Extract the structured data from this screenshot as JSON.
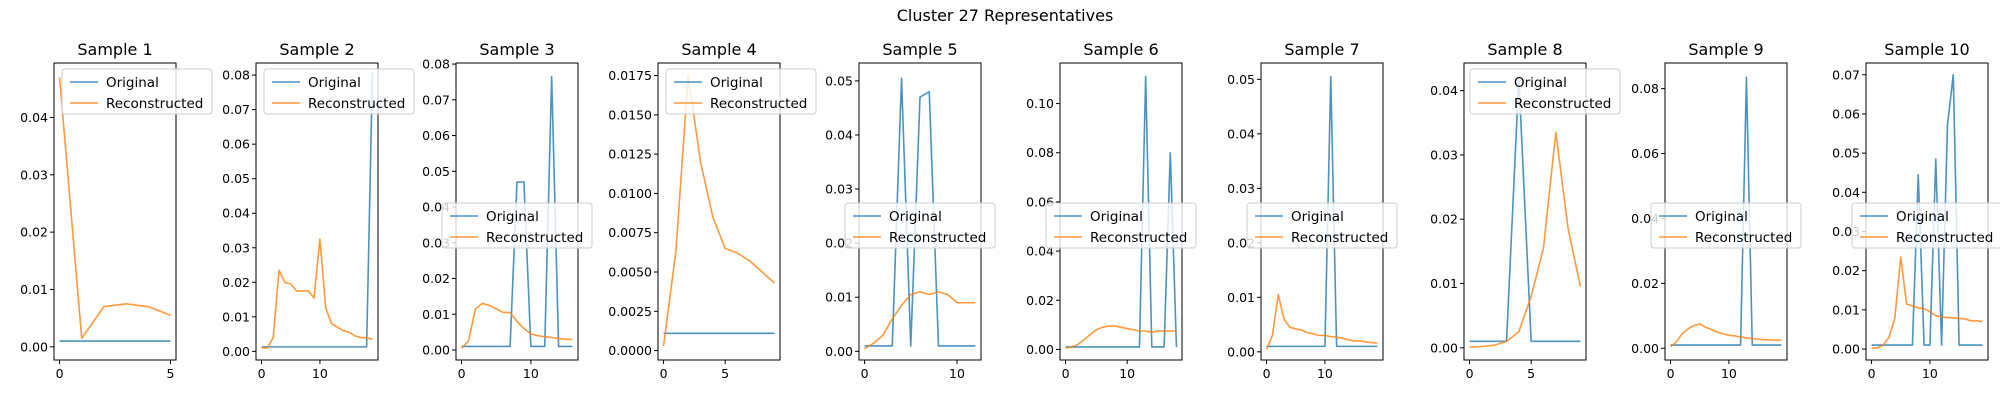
{
  "figure": {
    "title": "Cluster 27 Representatives",
    "colors": {
      "original": "#1f77b4",
      "reconstructed": "#ff7f0e",
      "frame": "#000000",
      "background": "#ffffff"
    }
  },
  "chart_data": [
    {
      "type": "line",
      "title": "Sample 1",
      "legend": "upper right",
      "xlim": [
        -0.25,
        5.25
      ],
      "ylim": [
        -0.0023,
        0.0495
      ],
      "xticks": [
        0,
        5
      ],
      "yticks": [
        0.0,
        0.01,
        0.02,
        0.03,
        0.04
      ],
      "ytick_labels": [
        "0.00",
        "0.01",
        "0.02",
        "0.03",
        "0.04"
      ],
      "series": [
        {
          "name": "Original",
          "x": [
            0,
            1,
            2,
            3,
            4,
            5
          ],
          "values": [
            0.001,
            0.001,
            0.001,
            0.001,
            0.001,
            0.001
          ]
        },
        {
          "name": "Reconstructed",
          "x": [
            0,
            1,
            2,
            3,
            4,
            5
          ],
          "values": [
            0.047,
            0.0015,
            0.007,
            0.0075,
            0.007,
            0.0055
          ]
        }
      ]
    },
    {
      "type": "line",
      "title": "Sample 2",
      "legend": "upper right",
      "xlim": [
        -0.95,
        19.95
      ],
      "ylim": [
        -0.0025,
        0.0835
      ],
      "xticks": [
        0,
        10
      ],
      "yticks": [
        0.0,
        0.01,
        0.02,
        0.03,
        0.04,
        0.05,
        0.06,
        0.07,
        0.08
      ],
      "ytick_labels": [
        "0.00",
        "0.01",
        "0.02",
        "0.03",
        "0.04",
        "0.05",
        "0.06",
        "0.07",
        "0.08"
      ],
      "series": [
        {
          "name": "Original",
          "x": [
            0,
            1,
            2,
            3,
            4,
            5,
            6,
            7,
            8,
            9,
            10,
            11,
            12,
            13,
            14,
            15,
            16,
            17,
            18,
            19
          ],
          "values": [
            0.0013,
            0.0013,
            0.0013,
            0.0013,
            0.0013,
            0.0013,
            0.0013,
            0.0013,
            0.0013,
            0.0013,
            0.0013,
            0.0013,
            0.0013,
            0.0013,
            0.0013,
            0.0013,
            0.0013,
            0.0013,
            0.0013,
            0.081
          ]
        },
        {
          "name": "Reconstructed",
          "x": [
            0,
            1,
            2,
            3,
            4,
            5,
            6,
            7,
            8,
            9,
            10,
            11,
            12,
            13,
            14,
            15,
            16,
            17,
            18,
            19
          ],
          "values": [
            0.001,
            0.001,
            0.004,
            0.0235,
            0.02,
            0.0195,
            0.0175,
            0.0175,
            0.0175,
            0.0155,
            0.0325,
            0.0125,
            0.008,
            0.007,
            0.006,
            0.0055,
            0.0045,
            0.004,
            0.004,
            0.0035
          ]
        }
      ]
    },
    {
      "type": "line",
      "title": "Sample 3",
      "legend": "center right",
      "xlim": [
        -0.8,
        16.8
      ],
      "ylim": [
        -0.0028,
        0.0803
      ],
      "xticks": [
        0,
        10
      ],
      "yticks": [
        0.0,
        0.01,
        0.02,
        0.03,
        0.04,
        0.05,
        0.06,
        0.07,
        0.08
      ],
      "ytick_labels": [
        "0.00",
        "0.01",
        "0.02",
        "0.03",
        "0.04",
        "0.05",
        "0.06",
        "0.07",
        "0.08"
      ],
      "series": [
        {
          "name": "Original",
          "x": [
            0,
            1,
            2,
            3,
            4,
            5,
            6,
            7,
            8,
            9,
            10,
            11,
            12,
            13,
            14,
            15,
            16
          ],
          "values": [
            0.001,
            0.001,
            0.001,
            0.001,
            0.001,
            0.001,
            0.001,
            0.001,
            0.047,
            0.047,
            0.001,
            0.001,
            0.001,
            0.0765,
            0.001,
            0.001,
            0.001
          ]
        },
        {
          "name": "Reconstructed",
          "x": [
            0,
            1,
            2,
            3,
            4,
            5,
            6,
            7,
            8,
            9,
            10,
            11,
            12,
            13,
            14,
            15,
            16
          ],
          "values": [
            0.0005,
            0.0025,
            0.0115,
            0.013,
            0.0125,
            0.0115,
            0.0105,
            0.0105,
            0.008,
            0.006,
            0.0045,
            0.004,
            0.0037,
            0.0035,
            0.0032,
            0.003,
            0.003
          ]
        }
      ]
    },
    {
      "type": "line",
      "title": "Sample 4",
      "legend": "upper right",
      "xlim": [
        -0.45,
        9.45
      ],
      "ylim": [
        -0.0006,
        0.0183
      ],
      "xticks": [
        0,
        5
      ],
      "yticks": [
        0.0,
        0.0025,
        0.005,
        0.0075,
        0.01,
        0.0125,
        0.015,
        0.0175
      ],
      "ytick_labels": [
        "0.0000",
        "0.0025",
        "0.0050",
        "0.0075",
        "0.0100",
        "0.0125",
        "0.0150",
        "0.0175"
      ],
      "series": [
        {
          "name": "Original",
          "x": [
            0,
            1,
            2,
            3,
            4,
            5,
            6,
            7,
            8,
            9
          ],
          "values": [
            0.0011,
            0.0011,
            0.0011,
            0.0011,
            0.0011,
            0.0011,
            0.0011,
            0.0011,
            0.0011,
            0.0011
          ]
        },
        {
          "name": "Reconstructed",
          "x": [
            0,
            1,
            2,
            3,
            4,
            5,
            6,
            7,
            8,
            9
          ],
          "values": [
            0.0003,
            0.0063,
            0.0175,
            0.012,
            0.0085,
            0.0065,
            0.0062,
            0.0057,
            0.005,
            0.0043
          ]
        }
      ]
    },
    {
      "type": "line",
      "title": "Sample 5",
      "legend": "center right",
      "xlim": [
        -0.6,
        12.6
      ],
      "ylim": [
        -0.0016,
        0.0533
      ],
      "xticks": [
        0,
        10
      ],
      "yticks": [
        0.0,
        0.01,
        0.02,
        0.03,
        0.04,
        0.05
      ],
      "ytick_labels": [
        "0.00",
        "0.01",
        "0.02",
        "0.03",
        "0.04",
        "0.05"
      ],
      "series": [
        {
          "name": "Original",
          "x": [
            0,
            1,
            2,
            3,
            4,
            5,
            6,
            7,
            8,
            9,
            10,
            11,
            12
          ],
          "values": [
            0.001,
            0.001,
            0.001,
            0.001,
            0.0505,
            0.001,
            0.047,
            0.048,
            0.001,
            0.001,
            0.001,
            0.001,
            0.001
          ]
        },
        {
          "name": "Reconstructed",
          "x": [
            0,
            1,
            2,
            3,
            4,
            5,
            6,
            7,
            8,
            9,
            10,
            11,
            12
          ],
          "values": [
            0.0005,
            0.0015,
            0.003,
            0.006,
            0.0085,
            0.0105,
            0.011,
            0.0105,
            0.011,
            0.0105,
            0.009,
            0.009,
            0.009
          ]
        }
      ]
    },
    {
      "type": "line",
      "title": "Sample 6",
      "legend": "center right",
      "xlim": [
        -0.9,
        18.9
      ],
      "ylim": [
        -0.0043,
        0.1165
      ],
      "xticks": [
        0,
        10
      ],
      "yticks": [
        0.0,
        0.02,
        0.04,
        0.06,
        0.08,
        0.1
      ],
      "ytick_labels": [
        "0.00",
        "0.02",
        "0.04",
        "0.06",
        "0.08",
        "0.10"
      ],
      "series": [
        {
          "name": "Original",
          "x": [
            0,
            1,
            2,
            3,
            4,
            5,
            6,
            7,
            8,
            9,
            10,
            11,
            12,
            13,
            14,
            15,
            16,
            17,
            18
          ],
          "values": [
            0.001,
            0.001,
            0.001,
            0.001,
            0.001,
            0.001,
            0.001,
            0.001,
            0.001,
            0.001,
            0.001,
            0.001,
            0.001,
            0.111,
            0.001,
            0.001,
            0.001,
            0.08,
            0.001
          ]
        },
        {
          "name": "Reconstructed",
          "x": [
            0,
            1,
            2,
            3,
            4,
            5,
            6,
            7,
            8,
            9,
            10,
            11,
            12,
            13,
            14,
            15,
            16,
            17,
            18
          ],
          "values": [
            0.0005,
            0.001,
            0.002,
            0.004,
            0.006,
            0.008,
            0.009,
            0.0095,
            0.0095,
            0.009,
            0.0085,
            0.008,
            0.0075,
            0.0075,
            0.007,
            0.0075,
            0.0075,
            0.0075,
            0.0075
          ]
        }
      ]
    },
    {
      "type": "line",
      "title": "Sample 7",
      "legend": "center right",
      "xlim": [
        -0.95,
        19.95
      ],
      "ylim": [
        -0.0015,
        0.053
      ],
      "xticks": [
        0,
        10
      ],
      "yticks": [
        0.0,
        0.01,
        0.02,
        0.03,
        0.04,
        0.05
      ],
      "ytick_labels": [
        "0.00",
        "0.01",
        "0.02",
        "0.03",
        "0.04",
        "0.05"
      ],
      "series": [
        {
          "name": "Original",
          "x": [
            0,
            1,
            2,
            3,
            4,
            5,
            6,
            7,
            8,
            9,
            10,
            11,
            12,
            13,
            14,
            15,
            16,
            17,
            18,
            19
          ],
          "values": [
            0.001,
            0.001,
            0.001,
            0.001,
            0.001,
            0.001,
            0.001,
            0.001,
            0.001,
            0.001,
            0.001,
            0.0505,
            0.001,
            0.001,
            0.001,
            0.001,
            0.001,
            0.001,
            0.001,
            0.001
          ]
        },
        {
          "name": "Reconstructed",
          "x": [
            0,
            1,
            2,
            3,
            4,
            5,
            6,
            7,
            8,
            9,
            10,
            11,
            12,
            13,
            14,
            15,
            16,
            17,
            18,
            19
          ],
          "values": [
            0.0005,
            0.003,
            0.0105,
            0.006,
            0.0045,
            0.0042,
            0.004,
            0.0035,
            0.0033,
            0.003,
            0.003,
            0.0028,
            0.0027,
            0.0025,
            0.0022,
            0.002,
            0.002,
            0.0018,
            0.0017,
            0.0016
          ]
        }
      ]
    },
    {
      "type": "line",
      "title": "Sample 8",
      "legend": "upper left",
      "xlim": [
        -0.45,
        9.45
      ],
      "ylim": [
        -0.0019,
        0.0443
      ],
      "xticks": [
        0,
        5
      ],
      "yticks": [
        0.0,
        0.01,
        0.02,
        0.03,
        0.04
      ],
      "ytick_labels": [
        "0.00",
        "0.01",
        "0.02",
        "0.03",
        "0.04"
      ],
      "series": [
        {
          "name": "Original",
          "x": [
            0,
            1,
            2,
            3,
            4,
            5,
            6,
            7,
            8,
            9
          ],
          "values": [
            0.001,
            0.001,
            0.001,
            0.001,
            0.042,
            0.001,
            0.001,
            0.001,
            0.001,
            0.001
          ]
        },
        {
          "name": "Reconstructed",
          "x": [
            0,
            1,
            2,
            3,
            4,
            5,
            6,
            7,
            8,
            9
          ],
          "values": [
            0.0001,
            0.0002,
            0.0004,
            0.001,
            0.0025,
            0.008,
            0.0155,
            0.0335,
            0.0185,
            0.0095
          ]
        }
      ]
    },
    {
      "type": "line",
      "title": "Sample 9",
      "legend": "center right",
      "xlim": [
        -0.95,
        19.95
      ],
      "ylim": [
        -0.0036,
        0.0879
      ],
      "xticks": [
        0,
        10
      ],
      "yticks": [
        0.0,
        0.02,
        0.04,
        0.06,
        0.08
      ],
      "ytick_labels": [
        "0.00",
        "0.02",
        "0.04",
        "0.06",
        "0.08"
      ],
      "series": [
        {
          "name": "Original",
          "x": [
            0,
            1,
            2,
            3,
            4,
            5,
            6,
            7,
            8,
            9,
            10,
            11,
            12,
            13,
            14,
            15,
            16,
            17,
            18,
            19
          ],
          "values": [
            0.001,
            0.001,
            0.001,
            0.001,
            0.001,
            0.001,
            0.001,
            0.001,
            0.001,
            0.001,
            0.001,
            0.001,
            0.001,
            0.0835,
            0.001,
            0.001,
            0.001,
            0.001,
            0.001,
            0.001
          ]
        },
        {
          "name": "Reconstructed",
          "x": [
            0,
            1,
            2,
            3,
            4,
            5,
            6,
            7,
            8,
            9,
            10,
            11,
            12,
            13,
            14,
            15,
            16,
            17,
            18,
            19
          ],
          "values": [
            0.0005,
            0.002,
            0.0045,
            0.006,
            0.007,
            0.0075,
            0.0065,
            0.0058,
            0.005,
            0.0045,
            0.004,
            0.0038,
            0.0035,
            0.0032,
            0.003,
            0.0028,
            0.0027,
            0.0026,
            0.0025,
            0.0025
          ]
        }
      ]
    },
    {
      "type": "line",
      "title": "Sample 10",
      "legend": "center right",
      "xlim": [
        -0.95,
        19.95
      ],
      "ylim": [
        -0.0028,
        0.073
      ],
      "xticks": [
        0,
        10
      ],
      "yticks": [
        0.0,
        0.01,
        0.02,
        0.03,
        0.04,
        0.05,
        0.06,
        0.07
      ],
      "ytick_labels": [
        "0.00",
        "0.01",
        "0.02",
        "0.03",
        "0.04",
        "0.05",
        "0.06",
        "0.07"
      ],
      "series": [
        {
          "name": "Original",
          "x": [
            0,
            1,
            2,
            3,
            4,
            5,
            6,
            7,
            8,
            9,
            10,
            11,
            12,
            13,
            14,
            15,
            16,
            17,
            18,
            19
          ],
          "values": [
            0.001,
            0.001,
            0.001,
            0.001,
            0.001,
            0.001,
            0.001,
            0.001,
            0.0445,
            0.001,
            0.001,
            0.0485,
            0.001,
            0.057,
            0.07,
            0.001,
            0.001,
            0.001,
            0.001,
            0.001
          ]
        },
        {
          "name": "Reconstructed",
          "x": [
            0,
            1,
            2,
            3,
            4,
            5,
            6,
            7,
            8,
            9,
            10,
            11,
            12,
            13,
            14,
            15,
            16,
            17,
            18,
            19
          ],
          "values": [
            0.0002,
            0.0003,
            0.001,
            0.003,
            0.008,
            0.0235,
            0.0115,
            0.011,
            0.0105,
            0.0103,
            0.0095,
            0.0085,
            0.0082,
            0.008,
            0.008,
            0.0078,
            0.0077,
            0.0072,
            0.0072,
            0.007
          ]
        }
      ]
    }
  ]
}
